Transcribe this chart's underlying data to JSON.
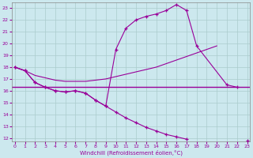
{
  "background_color": "#cce8ee",
  "grid_color": "#aacccc",
  "line_color": "#990099",
  "xlim": [
    -0.3,
    23.3
  ],
  "ylim": [
    11.7,
    23.5
  ],
  "xticks": [
    0,
    1,
    2,
    3,
    4,
    5,
    6,
    7,
    8,
    9,
    10,
    11,
    12,
    13,
    14,
    15,
    16,
    17,
    18,
    19,
    20,
    21,
    22,
    23
  ],
  "yticks": [
    12,
    13,
    14,
    15,
    16,
    17,
    18,
    19,
    20,
    21,
    22,
    23
  ],
  "xlabel": "Windchill (Refroidissement éolien,°C)",
  "flat_y": 16.3,
  "line_rise_x": [
    0,
    1,
    2,
    3,
    4,
    5,
    6,
    7,
    8,
    9,
    10,
    11,
    12,
    13,
    14,
    15,
    16,
    17,
    18,
    19,
    20
  ],
  "line_rise_y": [
    18.0,
    17.7,
    17.3,
    17.1,
    16.9,
    16.8,
    16.8,
    16.8,
    16.9,
    17.0,
    17.2,
    17.4,
    17.6,
    17.8,
    18.0,
    18.3,
    18.6,
    18.9,
    19.2,
    19.5,
    19.8
  ],
  "line_peak_x": [
    0,
    1,
    2,
    3,
    4,
    5,
    6,
    7,
    8,
    9,
    10,
    11,
    12,
    13,
    14,
    15,
    16,
    17,
    18,
    21,
    22
  ],
  "line_peak_y": [
    18.0,
    17.7,
    16.7,
    16.3,
    16.0,
    15.9,
    16.0,
    15.8,
    15.2,
    14.7,
    19.5,
    21.3,
    22.0,
    22.3,
    22.5,
    22.8,
    23.3,
    22.8,
    19.8,
    16.5,
    16.3
  ],
  "line_desc_x": [
    0,
    1,
    2,
    3,
    4,
    5,
    6,
    7,
    8,
    9,
    10,
    11,
    12,
    13,
    14,
    15,
    16,
    17,
    18,
    19,
    20,
    21,
    22,
    23
  ],
  "line_desc_y": [
    18.0,
    17.7,
    16.7,
    16.3,
    16.0,
    15.9,
    16.0,
    15.8,
    15.2,
    14.7,
    14.2,
    13.7,
    13.3,
    12.9,
    12.6,
    12.3,
    12.1,
    11.9,
    null,
    null,
    null,
    null,
    null,
    11.8
  ]
}
